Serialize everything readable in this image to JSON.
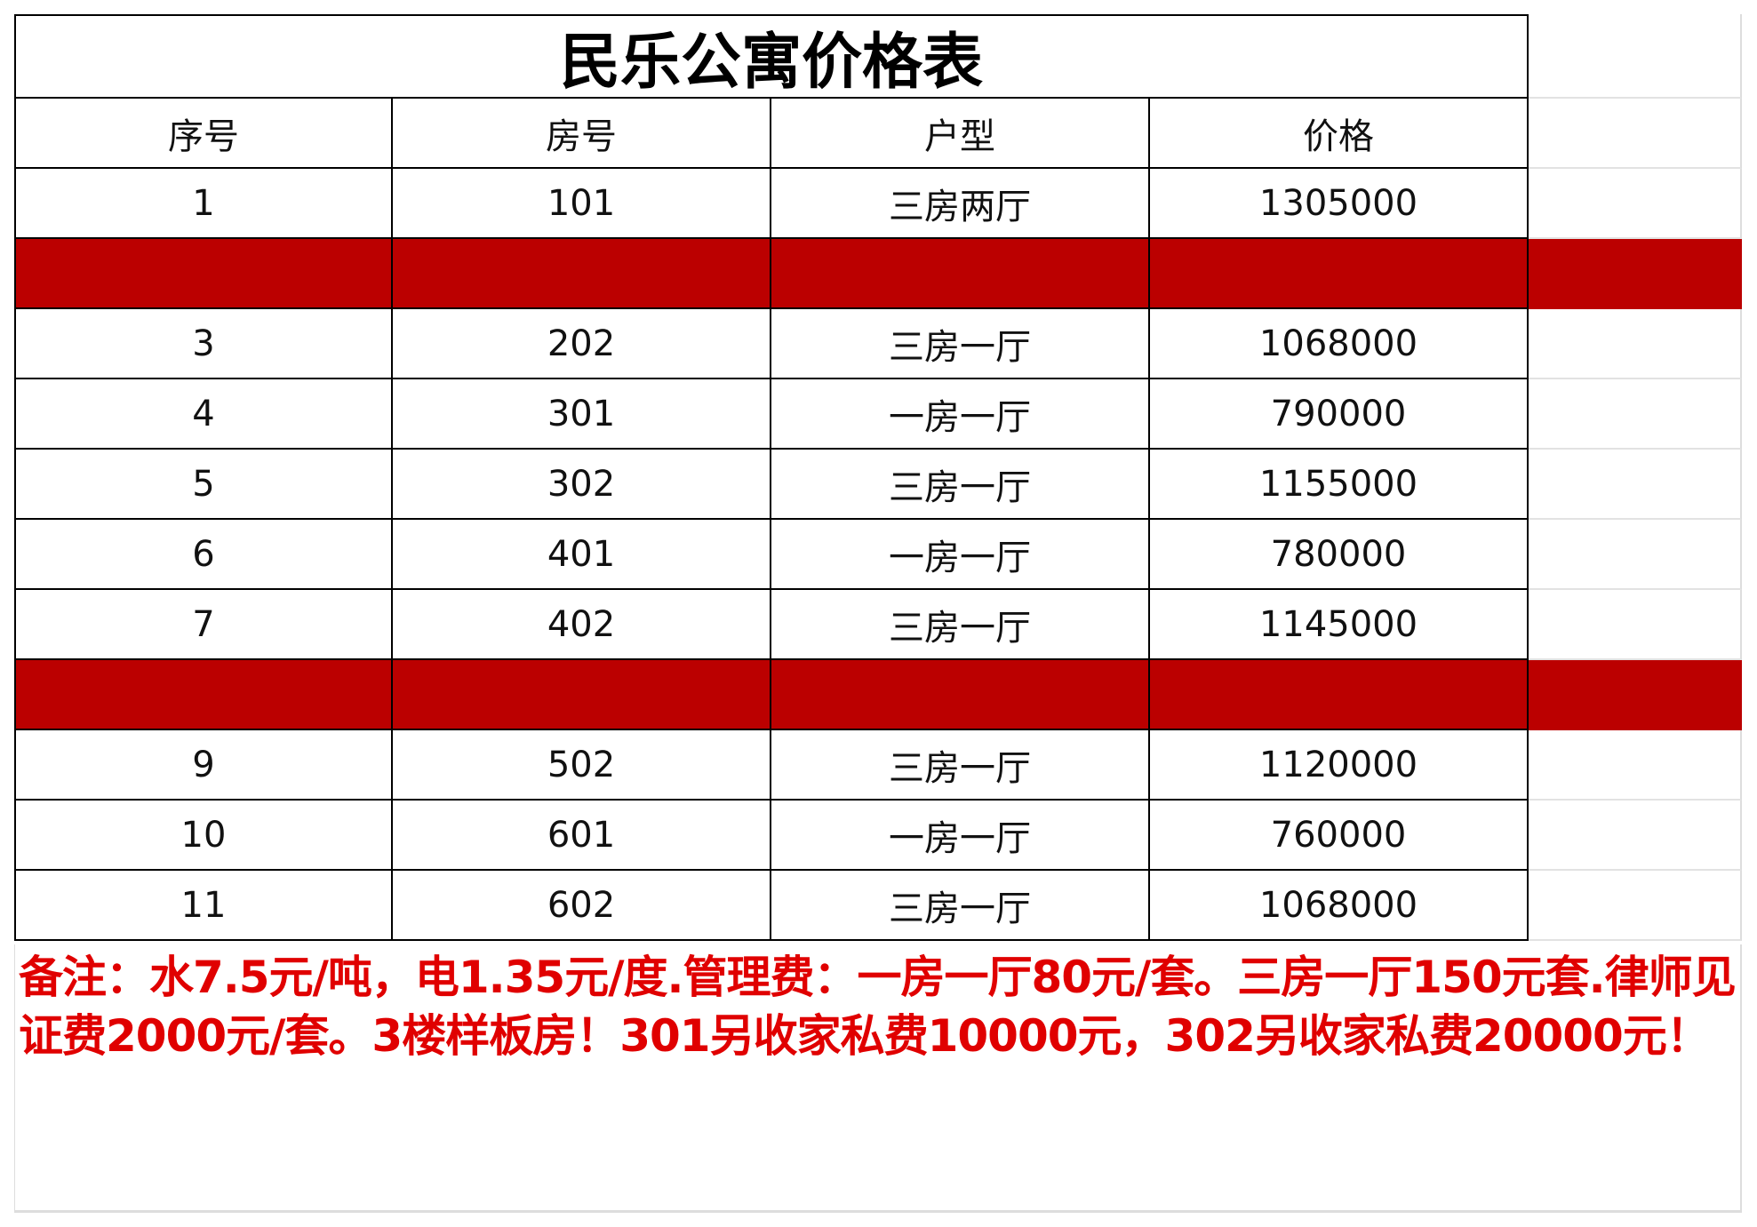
{
  "title": "民乐公寓价格表",
  "headers": [
    "序号",
    "房号",
    "户型",
    "价格"
  ],
  "rows": [
    {
      "seq": "1",
      "room": "101",
      "type": "三房两厅",
      "price": "1305000",
      "highlight": false
    },
    {
      "seq": "",
      "room": "",
      "type": "",
      "price": "",
      "highlight": true
    },
    {
      "seq": "3",
      "room": "202",
      "type": "三房一厅",
      "price": "1068000",
      "highlight": false
    },
    {
      "seq": "4",
      "room": "301",
      "type": "一房一厅",
      "price": "790000",
      "highlight": false
    },
    {
      "seq": "5",
      "room": "302",
      "type": "三房一厅",
      "price": "1155000",
      "highlight": false
    },
    {
      "seq": "6",
      "room": "401",
      "type": "一房一厅",
      "price": "780000",
      "highlight": false
    },
    {
      "seq": "7",
      "room": "402",
      "type": "三房一厅",
      "price": "1145000",
      "highlight": false
    },
    {
      "seq": "",
      "room": "",
      "type": "",
      "price": "",
      "highlight": true
    },
    {
      "seq": "9",
      "room": "502",
      "type": "三房一厅",
      "price": "1120000",
      "highlight": false
    },
    {
      "seq": "10",
      "room": "601",
      "type": "一房一厅",
      "price": "760000",
      "highlight": false
    },
    {
      "seq": "11",
      "room": "602",
      "type": "三房一厅",
      "price": "1068000",
      "highlight": false
    }
  ],
  "notes": "备注：水7.5元/吨，电1.35元/度.管理费：一房一厅80元/套。三房一厅150元套.律师见证费2000元/套。3楼样板房！301另收家私费10000元，302另收家私费20000元！",
  "colors": {
    "highlight_row": "#bb0000",
    "notes_text": "#e00000"
  }
}
